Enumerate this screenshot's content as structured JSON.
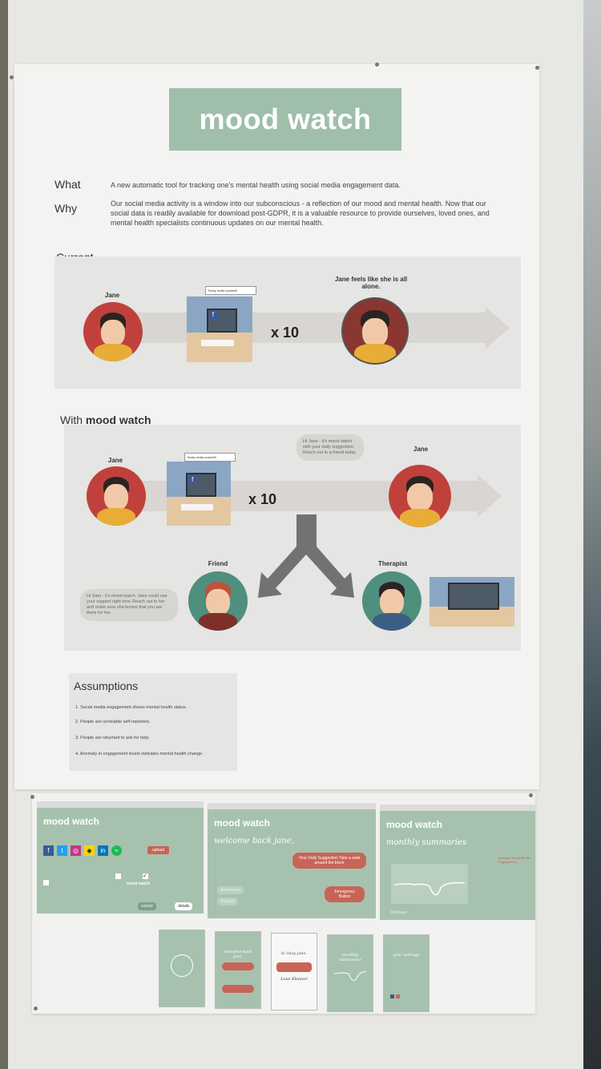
{
  "poster": {
    "title": "mood watch",
    "what_label": "What",
    "what_text": "A new automatic tool for tracking one's mental health using social media engagement data.",
    "why_label": "Why",
    "why_text": "Our social media activity is a window into our subconscious - a reflection of our mood and mental health. Now that our social data is readily available for download post-GDPR, it is a valuable resource to provide ourselves, loved ones, and mental health specialists continuous updates on our mental health."
  },
  "current": {
    "label": "Current",
    "person_left": "Jane",
    "screen_note": "Today really sucked!!",
    "multiplier": "x 10",
    "person_right": "Jane feels like she is all alone."
  },
  "with_moodwatch": {
    "label_prefix": "With",
    "label_bold": "mood watch",
    "person_left": "Jane",
    "screen_note": "Today really sucked!!",
    "multiplier": "x 10",
    "bubble_jane": "Hi Jane - it's mood watch with your daily suggestion. Reach out to a friend today.",
    "person_right": "Jane",
    "friend_label": "Friend",
    "therapist_label": "Therapist",
    "bubble_friend": "Hi Sam - it's mood watch. Jane could use your support right now. Reach out to her and make sure she knows that you are there for her."
  },
  "assumptions": {
    "title": "Assumptions",
    "items": [
      "1. Social media engagement shows mental health status.",
      "2. People are unreliable self-reporters.",
      "3. People are reluctant to ask for help.",
      "4. Anomaly in engagement levels indicates mental health change."
    ]
  },
  "screens": {
    "s1_title": "mood watch",
    "s1_upload": "upload",
    "s1_submit": "submit",
    "s1_details": "details",
    "s1_mood_watch": "mood watch",
    "s2_title": "mood watch",
    "s2_welcome": "welcome back jane,",
    "s2_suggestion": "Your Daily Suggestion Take a walk around the block",
    "s2_summaries_btn": "Summaries",
    "s2_settings_btn": "Settings",
    "s2_emergency": "Emergency Button",
    "s3_title": "mood watch",
    "s3_monthly": "monthly summaries",
    "s3_chart_note": "Average Social Media Engagement",
    "s3_month": "February"
  },
  "phones": {
    "p2": "welcome back jane,",
    "p3": "hi okay jane,",
    "p3b": "Love Eleanor",
    "p4": "monthly summaries",
    "p5": "your settings"
  },
  "colors": {
    "sage": "#9fbfaa",
    "brick": "#c86457",
    "avatar_red": "#c0413c"
  }
}
